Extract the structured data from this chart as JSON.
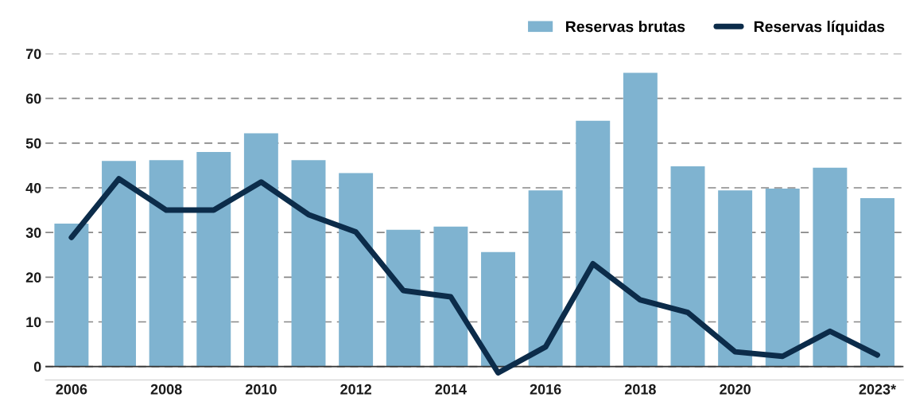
{
  "chart_data": {
    "type": "bar",
    "categories": [
      "2006",
      null,
      "2008",
      null,
      "2010",
      null,
      "2012",
      null,
      "2014",
      null,
      "2016",
      null,
      "2018",
      null,
      "2020",
      null,
      null,
      "2023*"
    ],
    "series": [
      {
        "name": "Reservas brutas",
        "color": "#7fb3d0",
        "values": [
          32,
          46,
          46.2,
          48,
          52.2,
          46.2,
          43.3,
          30.6,
          31.3,
          25.6,
          39.4,
          55,
          65.7,
          44.8,
          39.4,
          39.8,
          44.5,
          37.7
        ]
      },
      {
        "name": "Reservas líquidas",
        "type": "line",
        "color": "#0c2c4a",
        "values": [
          28.9,
          42,
          35,
          35,
          41.3,
          34,
          30.1,
          17,
          15.6,
          -1.4,
          4.4,
          23,
          14.9,
          12.1,
          3.3,
          2.3,
          7.9,
          2.6
        ]
      }
    ],
    "ylim": [
      -3,
      70
    ],
    "yticks": [
      0,
      10,
      20,
      30,
      40,
      50,
      60,
      70
    ],
    "grid": "y",
    "legend": "top right",
    "line_style": "solid"
  }
}
